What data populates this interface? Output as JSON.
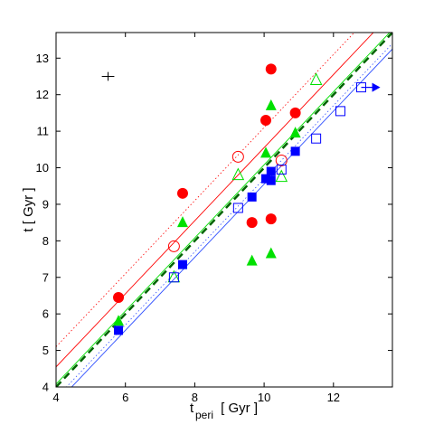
{
  "chart_data": {
    "type": "scatter",
    "xlabel": "t",
    "xlabel_sub": "peri",
    "xlabel_units": " [ Gyr ]",
    "ylabel": "t [ Gyr ]",
    "xlim": [
      4,
      13.7
    ],
    "ylim": [
      4,
      13.7
    ],
    "xticks": [
      4,
      6,
      8,
      10,
      12
    ],
    "yticks": [
      4,
      5,
      6,
      7,
      8,
      9,
      10,
      11,
      12,
      13
    ],
    "grid": false,
    "colors": {
      "red": "#ff0000",
      "green": "#00e000",
      "blue": "#0000ff",
      "darkgreen": "#006400"
    },
    "error_bar_point": {
      "x": 5.5,
      "y": 12.5,
      "xerr": 0.18,
      "yerr": 0.12
    },
    "series": [
      {
        "marker": "circle",
        "filled": true,
        "color": "#ff0000",
        "points": [
          [
            5.8,
            6.45
          ],
          [
            7.65,
            9.3
          ],
          [
            9.65,
            8.5
          ],
          [
            10.05,
            11.3
          ],
          [
            10.2,
            12.7
          ],
          [
            10.2,
            8.6
          ],
          [
            10.9,
            11.5
          ]
        ]
      },
      {
        "marker": "circle",
        "filled": false,
        "color": "#ff0000",
        "points": [
          [
            7.4,
            7.85
          ],
          [
            9.25,
            10.3
          ],
          [
            10.5,
            10.2
          ]
        ]
      },
      {
        "marker": "triangle",
        "filled": true,
        "color": "#00e000",
        "points": [
          [
            5.8,
            5.8
          ],
          [
            7.65,
            8.5
          ],
          [
            9.65,
            7.45
          ],
          [
            10.05,
            10.4
          ],
          [
            10.2,
            11.7
          ],
          [
            10.2,
            7.65
          ],
          [
            10.9,
            10.95
          ]
        ]
      },
      {
        "marker": "triangle",
        "filled": false,
        "color": "#00e000",
        "points": [
          [
            7.4,
            7.0
          ],
          [
            9.25,
            9.8
          ],
          [
            10.5,
            9.75
          ],
          [
            11.5,
            12.4
          ]
        ]
      },
      {
        "marker": "square",
        "filled": true,
        "color": "#0000ff",
        "points": [
          [
            5.8,
            5.55
          ],
          [
            7.65,
            7.35
          ],
          [
            9.65,
            9.2
          ],
          [
            10.05,
            9.7
          ],
          [
            10.2,
            9.9
          ],
          [
            10.2,
            9.65
          ],
          [
            10.9,
            10.45
          ]
        ]
      },
      {
        "marker": "square",
        "filled": false,
        "color": "#0000ff",
        "points": [
          [
            7.4,
            7.0
          ],
          [
            9.25,
            8.9
          ],
          [
            10.5,
            9.95
          ],
          [
            11.5,
            10.8
          ],
          [
            12.2,
            11.55
          ],
          [
            12.8,
            12.2
          ]
        ]
      }
    ],
    "arrow_point": {
      "x": 12.8,
      "y": 12.2,
      "x_to": 13.35,
      "color": "#0000ff"
    },
    "lines": [
      {
        "style": "dashed-thick",
        "color": "#006400",
        "slope": 1.0,
        "intercept": 0.0
      },
      {
        "style": "solid",
        "color": "#ff0000",
        "slope": 1.0,
        "intercept": 0.55
      },
      {
        "style": "dotted",
        "color": "#ff0000",
        "slope": 1.0,
        "intercept": 1.1
      },
      {
        "style": "solid",
        "color": "#3050ff",
        "slope": 1.0,
        "intercept": -0.45
      },
      {
        "style": "dotted",
        "color": "#3050ff",
        "slope": 1.0,
        "intercept": -0.3
      },
      {
        "style": "solid",
        "color": "#00e000",
        "slope": 1.0,
        "intercept": 0.08
      }
    ]
  }
}
